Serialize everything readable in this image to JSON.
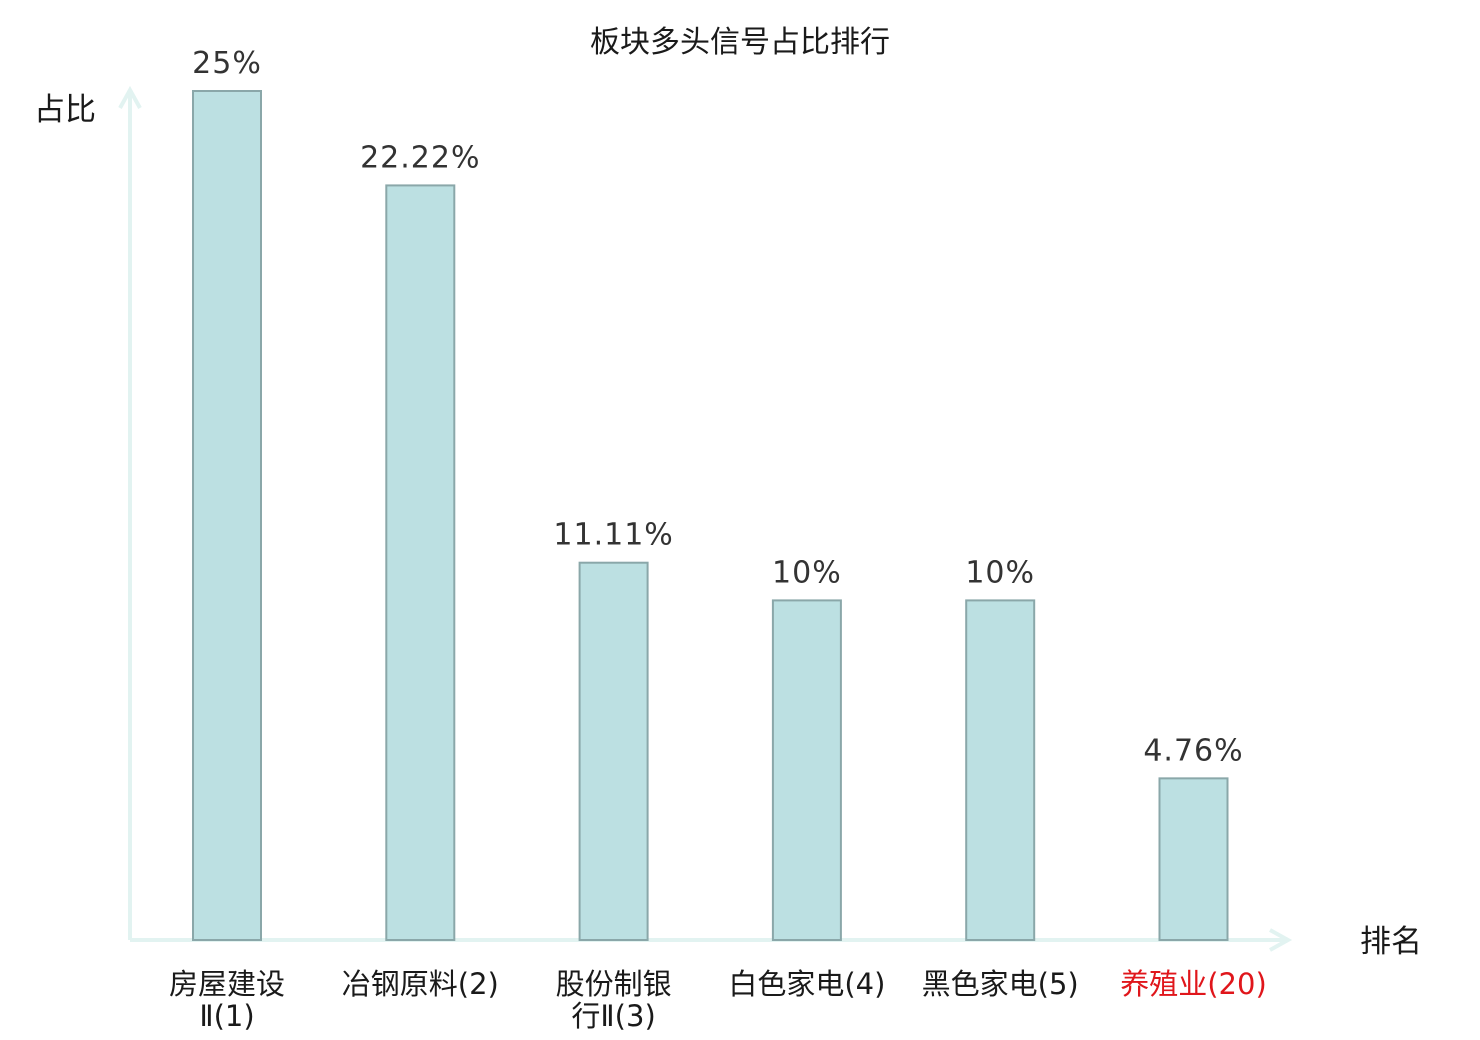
{
  "chart_data": {
    "type": "bar",
    "title": "板块多头信号占比排行",
    "ylabel": "占比",
    "xlabel": "排名",
    "ylim": [
      0,
      25
    ],
    "grid": false,
    "categories": [
      {
        "lines": [
          "房屋建设",
          "Ⅱ(1)"
        ],
        "highlight": false
      },
      {
        "lines": [
          "冶钢原料(2)"
        ],
        "highlight": false
      },
      {
        "lines": [
          "股份制银",
          "行Ⅱ(3)"
        ],
        "highlight": false
      },
      {
        "lines": [
          "白色家电(4)"
        ],
        "highlight": false
      },
      {
        "lines": [
          "黑色家电(5)"
        ],
        "highlight": false
      },
      {
        "lines": [
          "养殖业(20)"
        ],
        "highlight": true
      }
    ],
    "values": [
      25,
      22.22,
      11.11,
      10,
      10,
      4.76
    ],
    "value_labels": [
      "25%",
      "22.22%",
      "11.11%",
      "10%",
      "10%",
      "4.76%"
    ],
    "colors": {
      "bar_fill": "#bce0e2",
      "bar_stroke": "#8aa7a9",
      "axis": "#e2f3f1",
      "highlight_text": "#e0161b"
    }
  }
}
